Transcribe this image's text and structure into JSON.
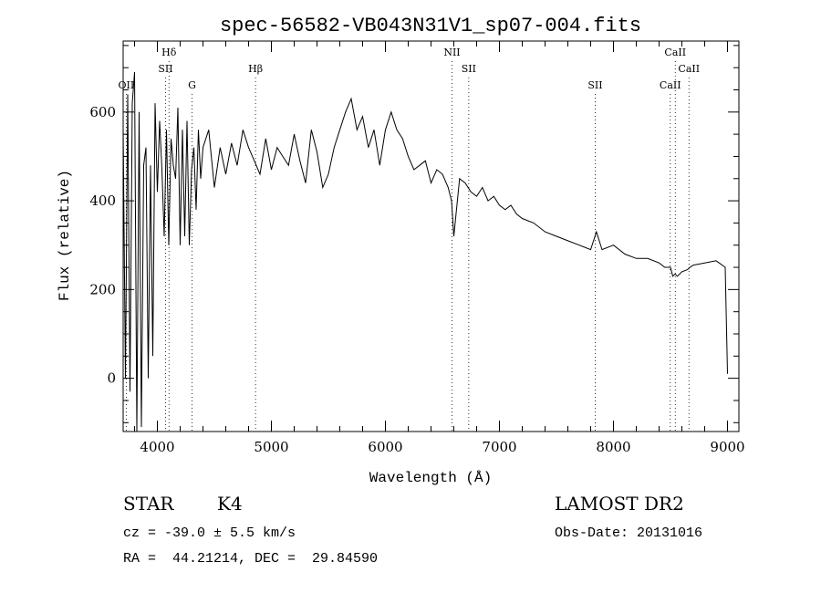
{
  "chart_data": {
    "type": "line",
    "title": "spec-56582-VB043N31V1_sp07-004.fits",
    "xlabel": "Wavelength (Å)",
    "ylabel": "Flux (relative)",
    "xlim": [
      3700,
      9100
    ],
    "ylim": [
      -120,
      760
    ],
    "xticks": [
      4000,
      5000,
      6000,
      7000,
      8000,
      9000
    ],
    "xtick_labels": [
      "4000",
      "5000",
      "6000",
      "7000",
      "8000",
      "9000"
    ],
    "yticks": [
      0,
      200,
      400,
      600
    ],
    "ytick_labels": [
      "0",
      "200",
      "400",
      "600"
    ],
    "grid": false,
    "line_color": "#000000",
    "spectral_lines": [
      {
        "label": "OII",
        "wavelength": 3727,
        "row": 3
      },
      {
        "label": "Hδ",
        "wavelength": 4102,
        "row": 1
      },
      {
        "label": "SII",
        "wavelength": 4072,
        "row": 2
      },
      {
        "label": "G",
        "wavelength": 4304,
        "row": 3
      },
      {
        "label": "Hβ",
        "wavelength": 4861,
        "row": 2
      },
      {
        "label": "NII",
        "wavelength": 6584,
        "row": 1
      },
      {
        "label": "SII",
        "wavelength": 6731,
        "row": 2
      },
      {
        "label": "SII",
        "wavelength": 7840,
        "row": 3
      },
      {
        "label": "CaII",
        "wavelength": 8498,
        "row": 3
      },
      {
        "label": "CaII",
        "wavelength": 8542,
        "row": 1
      },
      {
        "label": "CaII",
        "wavelength": 8662,
        "row": 2
      }
    ],
    "spectrum": {
      "x": [
        3700,
        3720,
        3740,
        3760,
        3780,
        3800,
        3820,
        3840,
        3860,
        3880,
        3900,
        3920,
        3940,
        3960,
        3980,
        4000,
        4020,
        4040,
        4060,
        4080,
        4100,
        4120,
        4140,
        4160,
        4180,
        4200,
        4220,
        4240,
        4260,
        4280,
        4300,
        4320,
        4340,
        4360,
        4380,
        4400,
        4450,
        4500,
        4550,
        4600,
        4650,
        4700,
        4750,
        4800,
        4850,
        4900,
        4950,
        5000,
        5050,
        5100,
        5150,
        5200,
        5250,
        5300,
        5350,
        5400,
        5450,
        5500,
        5550,
        5600,
        5650,
        5700,
        5750,
        5800,
        5850,
        5900,
        5950,
        6000,
        6050,
        6100,
        6150,
        6200,
        6250,
        6300,
        6350,
        6400,
        6450,
        6500,
        6550,
        6580,
        6600,
        6650,
        6700,
        6750,
        6800,
        6850,
        6900,
        6950,
        7000,
        7050,
        7100,
        7150,
        7200,
        7300,
        7400,
        7500,
        7600,
        7700,
        7800,
        7850,
        7900,
        8000,
        8100,
        8200,
        8300,
        8400,
        8450,
        8500,
        8520,
        8540,
        8560,
        8600,
        8650,
        8670,
        8700,
        8800,
        8900,
        8980,
        9000
      ],
      "y": [
        560,
        0,
        640,
        -30,
        620,
        690,
        -120,
        600,
        -110,
        480,
        520,
        0,
        480,
        50,
        620,
        420,
        580,
        470,
        320,
        560,
        300,
        540,
        480,
        450,
        610,
        300,
        560,
        320,
        580,
        300,
        470,
        520,
        380,
        560,
        450,
        520,
        560,
        430,
        520,
        460,
        530,
        480,
        560,
        520,
        490,
        460,
        540,
        470,
        520,
        500,
        480,
        550,
        490,
        440,
        560,
        510,
        430,
        460,
        520,
        560,
        600,
        630,
        560,
        590,
        520,
        560,
        480,
        560,
        600,
        560,
        540,
        500,
        470,
        480,
        490,
        440,
        470,
        460,
        430,
        400,
        320,
        450,
        440,
        420,
        410,
        430,
        400,
        410,
        390,
        380,
        390,
        370,
        360,
        350,
        330,
        320,
        310,
        300,
        290,
        330,
        290,
        300,
        280,
        270,
        270,
        260,
        250,
        250,
        230,
        235,
        230,
        240,
        245,
        250,
        255,
        260,
        265,
        250,
        10
      ]
    }
  },
  "info": {
    "class_label": "STAR",
    "subclass": "K4",
    "survey": "LAMOST DR2",
    "cz": "cz = -39.0 ± 5.5 km/s",
    "obs_date": "Obs-Date: 20131016",
    "coords": "RA =  44.21214, DEC =  29.84590"
  }
}
